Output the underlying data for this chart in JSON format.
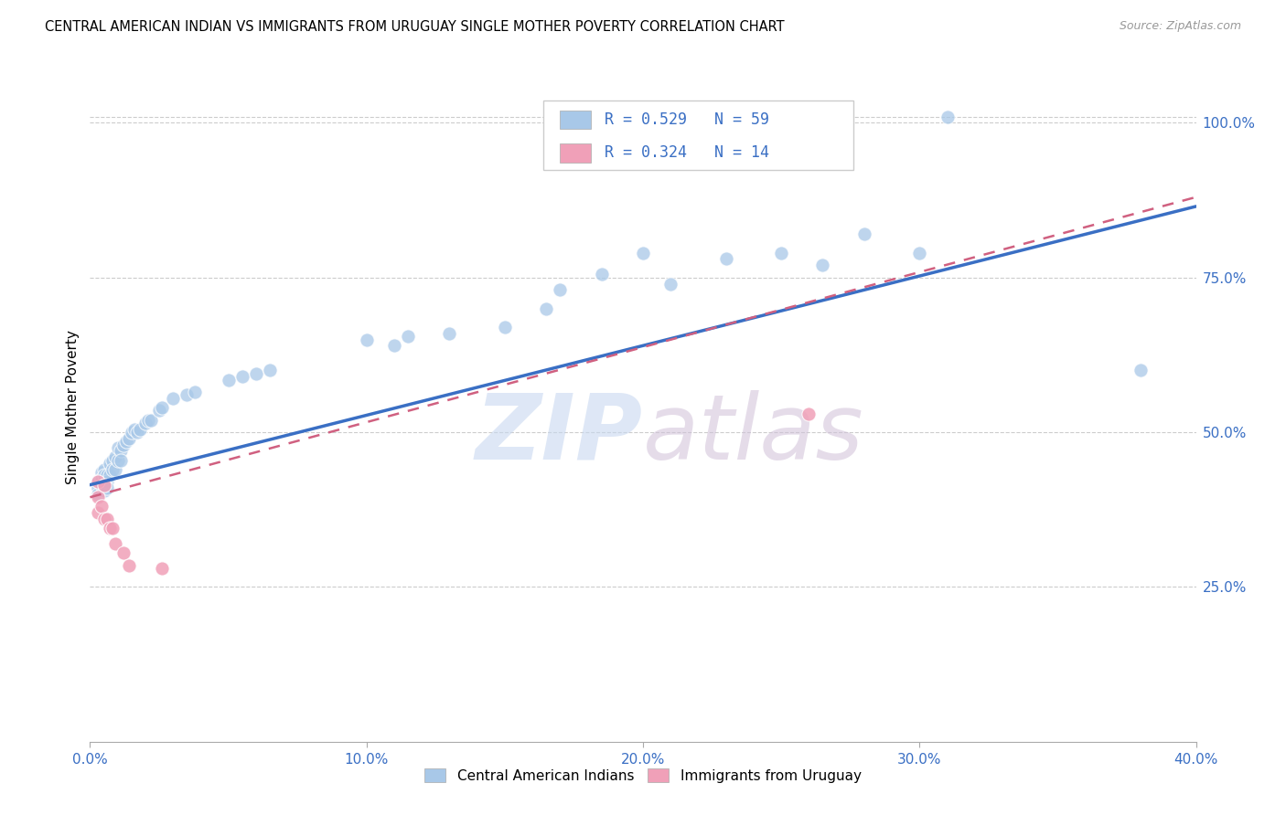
{
  "title": "CENTRAL AMERICAN INDIAN VS IMMIGRANTS FROM URUGUAY SINGLE MOTHER POVERTY CORRELATION CHART",
  "source": "Source: ZipAtlas.com",
  "xlabel_ticks": [
    "0.0%",
    "10.0%",
    "20.0%",
    "30.0%",
    "40.0%"
  ],
  "xlabel_vals": [
    0.0,
    0.1,
    0.2,
    0.3,
    0.4
  ],
  "ylabel_ticks": [
    "25.0%",
    "50.0%",
    "75.0%",
    "100.0%"
  ],
  "ylabel_vals": [
    0.25,
    0.5,
    0.75,
    1.0
  ],
  "xlim": [
    0.0,
    0.4
  ],
  "ylim": [
    0.0,
    1.08
  ],
  "legend_label1": "Central American Indians",
  "legend_label2": "Immigrants from Uruguay",
  "legend_R1": "R = 0.529",
  "legend_N1": "N = 59",
  "legend_R2": "R = 0.324",
  "legend_N2": "N = 14",
  "color_blue": "#a8c8e8",
  "color_pink": "#f0a0b8",
  "line_blue": "#3a6fc4",
  "line_pink_dashed": "#d06080",
  "watermark_zip_color": "#c8d8f0",
  "watermark_atlas_color": "#d0c0d8",
  "blue_x": [
    0.003,
    0.003,
    0.003,
    0.004,
    0.004,
    0.004,
    0.005,
    0.005,
    0.005,
    0.005,
    0.006,
    0.006,
    0.006,
    0.007,
    0.007,
    0.008,
    0.008,
    0.009,
    0.009,
    0.01,
    0.01,
    0.011,
    0.011,
    0.012,
    0.013,
    0.014,
    0.015,
    0.016,
    0.017,
    0.018,
    0.02,
    0.021,
    0.022,
    0.025,
    0.026,
    0.03,
    0.035,
    0.038,
    0.05,
    0.055,
    0.06,
    0.065,
    0.1,
    0.11,
    0.115,
    0.13,
    0.15,
    0.165,
    0.17,
    0.185,
    0.2,
    0.21,
    0.23,
    0.25,
    0.265,
    0.28,
    0.3,
    0.31,
    0.38
  ],
  "blue_y": [
    0.42,
    0.41,
    0.4,
    0.435,
    0.425,
    0.415,
    0.44,
    0.43,
    0.415,
    0.405,
    0.43,
    0.42,
    0.41,
    0.45,
    0.43,
    0.455,
    0.44,
    0.46,
    0.44,
    0.475,
    0.455,
    0.47,
    0.455,
    0.48,
    0.485,
    0.49,
    0.5,
    0.505,
    0.5,
    0.505,
    0.515,
    0.52,
    0.52,
    0.535,
    0.54,
    0.555,
    0.56,
    0.565,
    0.585,
    0.59,
    0.595,
    0.6,
    0.65,
    0.64,
    0.655,
    0.66,
    0.67,
    0.7,
    0.73,
    0.755,
    0.79,
    0.74,
    0.78,
    0.79,
    0.77,
    0.82,
    0.79,
    1.01,
    0.6
  ],
  "pink_x": [
    0.003,
    0.003,
    0.003,
    0.004,
    0.005,
    0.005,
    0.006,
    0.007,
    0.008,
    0.009,
    0.012,
    0.014,
    0.026,
    0.26
  ],
  "pink_y": [
    0.42,
    0.395,
    0.37,
    0.38,
    0.415,
    0.36,
    0.36,
    0.345,
    0.345,
    0.32,
    0.305,
    0.285,
    0.28,
    0.53
  ],
  "blue_line_x0": 0.0,
  "blue_line_y0": 0.415,
  "blue_line_x1": 0.4,
  "blue_line_y1": 0.865,
  "pink_line_x0": 0.0,
  "pink_line_y0": 0.395,
  "pink_line_x1": 0.4,
  "pink_line_y1": 0.88
}
